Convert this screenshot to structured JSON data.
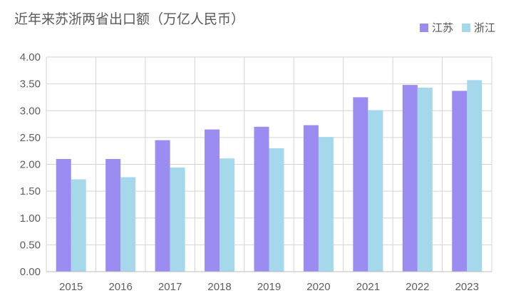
{
  "chart_data": {
    "type": "bar",
    "title": "近年来苏浙两省出口额（万亿人民币）",
    "categories": [
      "2015",
      "2016",
      "2017",
      "2018",
      "2019",
      "2020",
      "2021",
      "2022",
      "2023"
    ],
    "series": [
      {
        "name": "江苏",
        "color": "#9a8cf0",
        "values": [
          2.1,
          2.1,
          2.45,
          2.65,
          2.7,
          2.73,
          3.25,
          3.48,
          3.37
        ]
      },
      {
        "name": "浙江",
        "color": "#a6d8ec",
        "values": [
          1.72,
          1.76,
          1.94,
          2.11,
          2.3,
          2.51,
          3.01,
          3.43,
          3.57
        ]
      }
    ],
    "ylim": [
      0,
      4.0
    ],
    "yticks": [
      "0.00",
      "0.50",
      "1.00",
      "1.50",
      "2.00",
      "2.50",
      "3.00",
      "3.50",
      "4.00"
    ],
    "grid": true,
    "legend_position": "top-right",
    "xlabel": "",
    "ylabel": ""
  }
}
